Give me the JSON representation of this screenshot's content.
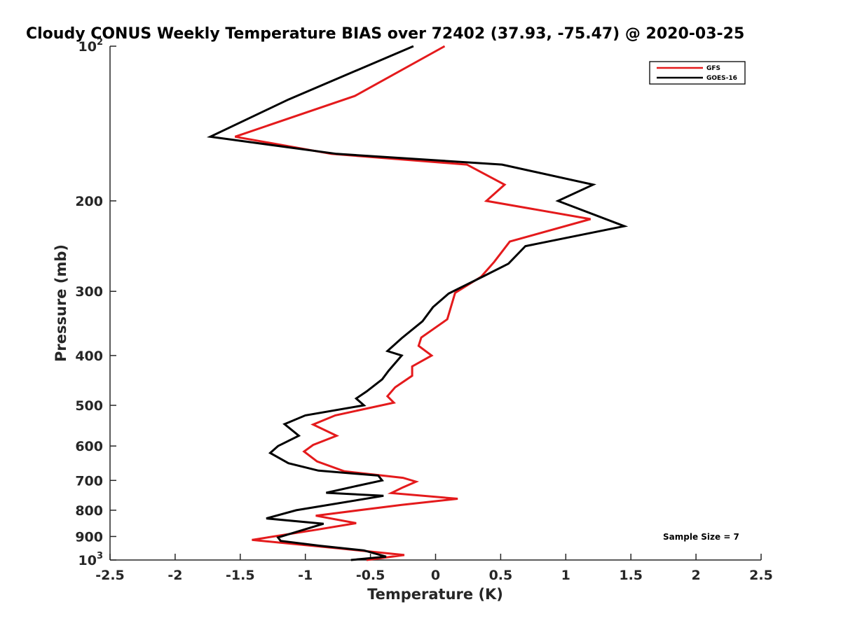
{
  "chart_data": {
    "type": "line",
    "title": "Cloudy CONUS Weekly Temperature BIAS over 72402 (37.93, -75.47) @ 2020-03-25",
    "xlabel": "Temperature (K)",
    "ylabel": "Pressure (mb)",
    "xlim": [
      -2.5,
      2.5
    ],
    "ylim": [
      1000,
      100
    ],
    "y_scale": "log",
    "grid": false,
    "legend_position": "top-right",
    "x_ticks": [
      "-2.5",
      "-2",
      "-1.5",
      "-1",
      "-0.5",
      "0",
      "0.5",
      "1",
      "1.5",
      "2",
      "2.5"
    ],
    "x_tick_values": [
      -2.5,
      -2,
      -1.5,
      -1,
      -0.5,
      0,
      0.5,
      1,
      1.5,
      2,
      2.5
    ],
    "y_ticks": [
      {
        "value": 100,
        "base": "10",
        "exp": "2"
      },
      {
        "value": 200,
        "label": "200"
      },
      {
        "value": 300,
        "label": "300"
      },
      {
        "value": 400,
        "label": "400"
      },
      {
        "value": 500,
        "label": "500"
      },
      {
        "value": 600,
        "label": "600"
      },
      {
        "value": 700,
        "label": "700"
      },
      {
        "value": 800,
        "label": "800"
      },
      {
        "value": 900,
        "label": "900"
      },
      {
        "value": 1000,
        "base": "10",
        "exp": "3"
      }
    ],
    "annotation": "Sample Size = 7",
    "series": [
      {
        "name": "GFS",
        "color": "#e41a1c",
        "points": [
          [
            0.07,
            100
          ],
          [
            -0.62,
            125
          ],
          [
            -1.54,
            150
          ],
          [
            -0.8,
            162
          ],
          [
            0.24,
            170
          ],
          [
            0.53,
            186
          ],
          [
            0.39,
            200
          ],
          [
            1.19,
            217
          ],
          [
            0.57,
            240
          ],
          [
            0.45,
            263
          ],
          [
            0.35,
            281
          ],
          [
            0.15,
            302
          ],
          [
            0.09,
            340
          ],
          [
            -0.11,
            369
          ],
          [
            -0.13,
            383
          ],
          [
            -0.03,
            400
          ],
          [
            -0.18,
            420
          ],
          [
            -0.18,
            438
          ],
          [
            -0.31,
            461
          ],
          [
            -0.37,
            480
          ],
          [
            -0.32,
            494
          ],
          [
            -0.77,
            523
          ],
          [
            -0.94,
            545
          ],
          [
            -0.76,
            573
          ],
          [
            -0.94,
            597
          ],
          [
            -1.01,
            615
          ],
          [
            -0.91,
            643
          ],
          [
            -0.7,
            672
          ],
          [
            -0.25,
            692
          ],
          [
            -0.15,
            704
          ],
          [
            -0.25,
            722
          ],
          [
            -0.34,
            741
          ],
          [
            0.17,
            760
          ],
          [
            -0.26,
            781
          ],
          [
            -0.92,
            820
          ],
          [
            -0.61,
            848
          ],
          [
            -0.9,
            872
          ],
          [
            -1.41,
            914
          ],
          [
            -0.73,
            950
          ],
          [
            -0.24,
            978
          ],
          [
            -0.53,
            1000
          ]
        ]
      },
      {
        "name": "GOES-16",
        "color": "#000000",
        "points": [
          [
            -0.17,
            100
          ],
          [
            -1.13,
            127
          ],
          [
            -1.73,
            150
          ],
          [
            -0.76,
            162
          ],
          [
            0.51,
            170
          ],
          [
            1.21,
            186
          ],
          [
            0.94,
            200
          ],
          [
            1.45,
            224
          ],
          [
            0.69,
            245
          ],
          [
            0.56,
            265
          ],
          [
            0.36,
            281
          ],
          [
            0.1,
            303
          ],
          [
            -0.02,
            322
          ],
          [
            -0.1,
            343
          ],
          [
            -0.26,
            370
          ],
          [
            -0.37,
            392
          ],
          [
            -0.26,
            400
          ],
          [
            -0.36,
            428
          ],
          [
            -0.41,
            445
          ],
          [
            -0.53,
            470
          ],
          [
            -0.61,
            485
          ],
          [
            -0.55,
            500
          ],
          [
            -1.0,
            523
          ],
          [
            -1.16,
            544
          ],
          [
            -1.05,
            573
          ],
          [
            -1.21,
            600
          ],
          [
            -1.27,
            619
          ],
          [
            -1.13,
            648
          ],
          [
            -0.9,
            670
          ],
          [
            -0.44,
            685
          ],
          [
            -0.41,
            700
          ],
          [
            -0.62,
            719
          ],
          [
            -0.84,
            740
          ],
          [
            -0.4,
            750
          ],
          [
            -1.07,
            800
          ],
          [
            -1.3,
            830
          ],
          [
            -0.86,
            850
          ],
          [
            -1.21,
            904
          ],
          [
            -1.19,
            918
          ],
          [
            -0.89,
            938
          ],
          [
            -0.55,
            958
          ],
          [
            -0.38,
            985
          ],
          [
            -0.65,
            1000
          ]
        ]
      }
    ]
  }
}
